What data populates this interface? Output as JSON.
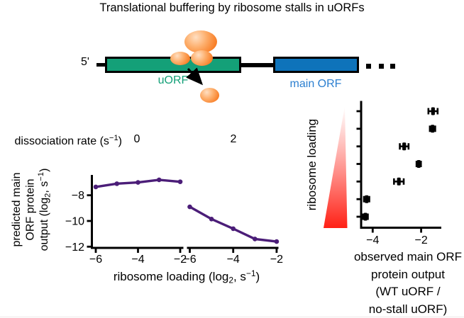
{
  "title": "Translational buffering by ribosome stalls in uORFs",
  "diagram": {
    "five_prime_label": "5'",
    "uorf_label": "uORF",
    "main_orf_label": "main ORF",
    "ellipsis_dots": 3,
    "colors": {
      "uorf_fill": "#14a078",
      "main_orf_fill": "#0e73ba",
      "uorf_text": "#14a078",
      "main_orf_text": "#2b7fd0",
      "ribosome_orange": "#f0701c",
      "mrna_line": "#000000"
    }
  },
  "chart_data": [
    {
      "type": "line",
      "facet_title_parts": [
        {
          "t": "dissociation rate (s"
        },
        {
          "t": "−1",
          "s": "sup"
        },
        {
          "t": ") "
        }
      ],
      "facets": [
        {
          "label": "0",
          "x": [
            -6,
            -5,
            -4,
            -3,
            -2
          ],
          "y": [
            -7.35,
            -7.1,
            -7.0,
            -6.8,
            -6.95
          ]
        },
        {
          "label": "2",
          "x": [
            -6,
            -5,
            -4,
            -3,
            -2
          ],
          "y": [
            -8.9,
            -9.85,
            -10.6,
            -11.4,
            -11.6
          ]
        }
      ],
      "xticks": [
        -6,
        -4,
        -2
      ],
      "yticks": [
        -8,
        -10,
        -12
      ],
      "xlim": [
        -6.2,
        -1.8
      ],
      "ylim": [
        -12.1,
        -6.4
      ],
      "xlabel_parts": [
        {
          "t": "ribosome loading (log"
        },
        {
          "t": "2",
          "s": "sub"
        },
        {
          "t": ", s"
        },
        {
          "t": "−1",
          "s": "sup"
        },
        {
          "t": ")"
        }
      ],
      "ylabel_lines": [
        [
          {
            "t": "predicted main"
          }
        ],
        [
          {
            "t": "ORF protein"
          }
        ],
        [
          {
            "t": "output (log"
          },
          {
            "t": "2",
            "s": "sub"
          },
          {
            "t": ", s"
          },
          {
            "t": "−1",
            "s": "sup"
          },
          {
            "t": ")"
          }
        ]
      ],
      "line_color": "#4b1d78",
      "grid": false,
      "legend": "none"
    },
    {
      "type": "scatter",
      "ylabel": "ribosome loading",
      "xlabel_lines": [
        "observed main ORF",
        "protein output",
        "(WT uORF /",
        "no-stall uORF)"
      ],
      "xticks": [
        -4,
        -2
      ],
      "xlim": [
        -4.55,
        -1.2
      ],
      "points_bottom_to_top": [
        {
          "level": 1,
          "x": -4.3,
          "xerr": 0.1
        },
        {
          "level": 2,
          "x": -4.25,
          "xerr": 0.11
        },
        {
          "level": 3,
          "x": -2.92,
          "xerr": 0.2
        },
        {
          "level": 4,
          "x": -2.1,
          "xerr": 0.09
        },
        {
          "level": 5,
          "x": -2.7,
          "xerr": 0.18
        },
        {
          "level": 6,
          "x": -1.53,
          "xerr": 0.11
        },
        {
          "level": 7,
          "x": -1.51,
          "xerr": 0.19
        }
      ],
      "y_axis_tick_count": 7,
      "marker_color": "#000000",
      "gradient_colors": [
        "#ffffff",
        "#ff2015"
      ],
      "grid": false
    }
  ]
}
